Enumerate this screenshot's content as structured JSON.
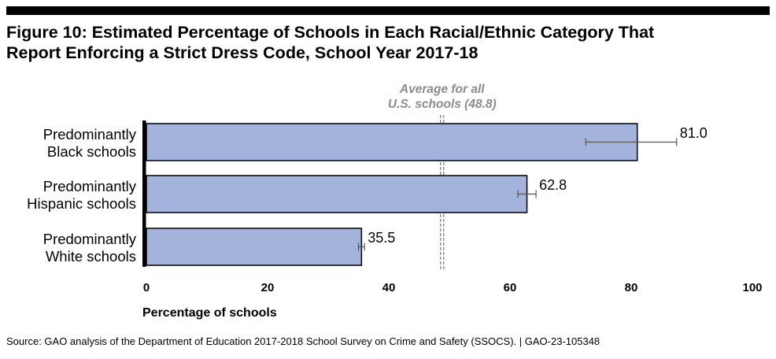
{
  "figure": {
    "title_line1": "Figure 10: Estimated Percentage of Schools in Each Racial/Ethnic Category That",
    "title_line2": "Report Enforcing a Strict Dress Code, School Year 2017-18",
    "source": "Source: GAO analysis of the Department of Education 2017-2018 School Survey on Crime and Safety (SSOCS).  |  GAO-23-105348"
  },
  "colors": {
    "bar_fill": "#a3b3dc",
    "bar_stroke": "#000000",
    "error_bar": "#555555",
    "average_line": "#808080",
    "average_text": "#8c8c8c"
  },
  "chart_data": {
    "type": "bar",
    "orientation": "horizontal",
    "categories": [
      [
        "Predominantly",
        "Black schools"
      ],
      [
        "Predominantly",
        "Hispanic schools"
      ],
      [
        "Predominantly",
        "White schools"
      ]
    ],
    "values": [
      81.0,
      62.8,
      35.5
    ],
    "value_labels": [
      "81.0",
      "62.8",
      "35.5"
    ],
    "error_bars": [
      [
        72.5,
        87.5
      ],
      [
        61.3,
        64.3
      ],
      [
        35.0,
        36.0
      ]
    ],
    "xlabel": "Percentage of schools",
    "xlim": [
      0,
      100
    ],
    "xticks": [
      0,
      20,
      40,
      60,
      80,
      100
    ],
    "xtick_labels": [
      "0",
      "20",
      "40",
      "60",
      "80",
      "100"
    ],
    "reference_line": {
      "value": 48.8,
      "label_line1": "Average for all",
      "label_line2": "U.S. schools (48.8)"
    },
    "grid": false,
    "legend": "none"
  }
}
